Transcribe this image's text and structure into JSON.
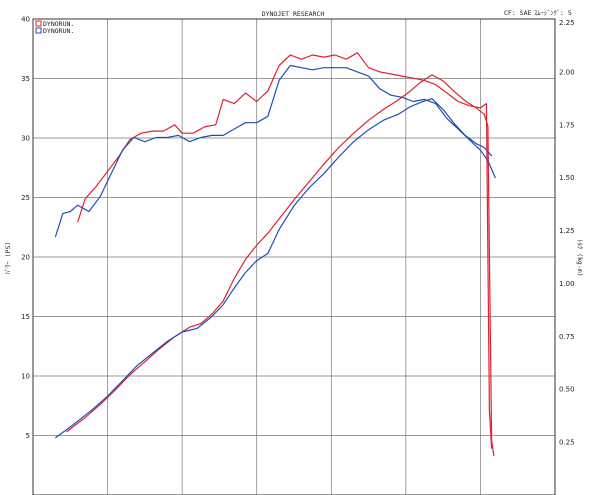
{
  "header": {
    "title": "DYNOJET RESEARCH",
    "correction": "CF: SAE",
    "smoothing": "ｽﾑｰｼﾞﾝｸﾞ: 5"
  },
  "chart_data": {
    "type": "line",
    "title": "DYNOJET RESEARCH",
    "ylabel": "ﾊﾟﾜｰ (PS)",
    "y2label": "ﾄﾙｸ (kg-m)",
    "xlabel": "",
    "ylim": [
      0,
      40
    ],
    "y2lim": [
      0,
      2.25
    ],
    "yticks": [
      "5",
      "10",
      "15",
      "20",
      "25",
      "30",
      "35",
      "40"
    ],
    "y2ticks": [
      "0.25",
      "0.50",
      "0.75",
      "1.00",
      "1.25",
      "1.50",
      "1.75",
      "2.00",
      "2.25"
    ],
    "x_grid_divisions": 7,
    "grid": true,
    "legend_position": "top-left",
    "colors": {
      "red": "#e0212f",
      "blue": "#1f4fb4"
    },
    "legend": [
      {
        "label": "DYNORUN.",
        "color": "#e0212f"
      },
      {
        "label": "DYNORUN.",
        "color": "#1f4fb4"
      }
    ],
    "series": [
      {
        "name": "DYNORUN.",
        "color": "#e0212f",
        "measure": "power",
        "axis": "left",
        "points": [
          [
            0.45,
            5.3
          ],
          [
            0.55,
            5.8
          ],
          [
            0.7,
            6.5
          ],
          [
            0.9,
            7.6
          ],
          [
            1.1,
            8.8
          ],
          [
            1.3,
            10.1
          ],
          [
            1.5,
            11.2
          ],
          [
            1.7,
            12.3
          ],
          [
            1.9,
            13.3
          ],
          [
            2.1,
            14.1
          ],
          [
            2.25,
            14.4
          ],
          [
            2.4,
            15.2
          ],
          [
            2.55,
            16.3
          ],
          [
            2.7,
            18.2
          ],
          [
            2.85,
            19.8
          ],
          [
            3.0,
            21.0
          ],
          [
            3.15,
            22.0
          ],
          [
            3.3,
            23.2
          ],
          [
            3.5,
            24.8
          ],
          [
            3.7,
            26.3
          ],
          [
            3.9,
            27.8
          ],
          [
            4.1,
            29.2
          ],
          [
            4.3,
            30.4
          ],
          [
            4.5,
            31.5
          ],
          [
            4.7,
            32.4
          ],
          [
            4.9,
            33.2
          ],
          [
            5.05,
            33.9
          ],
          [
            5.2,
            34.7
          ],
          [
            5.35,
            35.3
          ],
          [
            5.5,
            34.8
          ],
          [
            5.65,
            33.9
          ],
          [
            5.8,
            33.1
          ],
          [
            5.95,
            32.5
          ],
          [
            6.05,
            32.0
          ],
          [
            6.1,
            31.0
          ],
          [
            6.15,
            4.6
          ],
          [
            6.18,
            3.3
          ]
        ]
      },
      {
        "name": "DYNORUN.",
        "color": "#1f4fb4",
        "measure": "power",
        "axis": "left",
        "points": [
          [
            0.3,
            4.8
          ],
          [
            0.45,
            5.5
          ],
          [
            0.6,
            6.2
          ],
          [
            0.8,
            7.2
          ],
          [
            1.0,
            8.3
          ],
          [
            1.2,
            9.6
          ],
          [
            1.4,
            10.9
          ],
          [
            1.6,
            11.9
          ],
          [
            1.8,
            12.9
          ],
          [
            2.0,
            13.7
          ],
          [
            2.2,
            14.0
          ],
          [
            2.4,
            15.0
          ],
          [
            2.55,
            16.0
          ],
          [
            2.7,
            17.4
          ],
          [
            2.85,
            18.7
          ],
          [
            3.0,
            19.7
          ],
          [
            3.15,
            20.3
          ],
          [
            3.3,
            22.3
          ],
          [
            3.5,
            24.3
          ],
          [
            3.7,
            25.8
          ],
          [
            3.9,
            27.0
          ],
          [
            4.1,
            28.4
          ],
          [
            4.3,
            29.7
          ],
          [
            4.5,
            30.7
          ],
          [
            4.7,
            31.5
          ],
          [
            4.9,
            32.0
          ],
          [
            5.05,
            32.6
          ],
          [
            5.2,
            33.0
          ],
          [
            5.35,
            33.3
          ],
          [
            5.5,
            32.4
          ],
          [
            5.65,
            31.2
          ],
          [
            5.8,
            30.2
          ],
          [
            5.95,
            29.5
          ],
          [
            6.05,
            29.2
          ],
          [
            6.15,
            28.5
          ]
        ]
      },
      {
        "name": "DYNORUN.",
        "color": "#e0212f",
        "measure": "torque",
        "axis": "right",
        "points": [
          [
            0.6,
            1.29
          ],
          [
            0.7,
            1.4
          ],
          [
            0.85,
            1.46
          ],
          [
            1.0,
            1.53
          ],
          [
            1.15,
            1.6
          ],
          [
            1.3,
            1.68
          ],
          [
            1.45,
            1.71
          ],
          [
            1.6,
            1.72
          ],
          [
            1.75,
            1.72
          ],
          [
            1.9,
            1.75
          ],
          [
            2.0,
            1.71
          ],
          [
            2.15,
            1.71
          ],
          [
            2.3,
            1.74
          ],
          [
            2.45,
            1.75
          ],
          [
            2.55,
            1.87
          ],
          [
            2.7,
            1.85
          ],
          [
            2.85,
            1.9
          ],
          [
            3.0,
            1.86
          ],
          [
            3.15,
            1.91
          ],
          [
            3.3,
            2.03
          ],
          [
            3.45,
            2.08
          ],
          [
            3.6,
            2.06
          ],
          [
            3.75,
            2.08
          ],
          [
            3.9,
            2.07
          ],
          [
            4.05,
            2.08
          ],
          [
            4.2,
            2.06
          ],
          [
            4.35,
            2.09
          ],
          [
            4.5,
            2.02
          ],
          [
            4.65,
            2.0
          ],
          [
            4.8,
            1.99
          ],
          [
            4.95,
            1.98
          ],
          [
            5.1,
            1.97
          ],
          [
            5.25,
            1.96
          ],
          [
            5.4,
            1.94
          ],
          [
            5.55,
            1.9
          ],
          [
            5.7,
            1.86
          ],
          [
            5.85,
            1.84
          ],
          [
            6.0,
            1.83
          ],
          [
            6.08,
            1.85
          ],
          [
            6.12,
            0.4
          ],
          [
            6.15,
            0.22
          ]
        ]
      },
      {
        "name": "DYNORUN.",
        "color": "#1f4fb4",
        "measure": "torque",
        "axis": "right",
        "points": [
          [
            0.3,
            1.22
          ],
          [
            0.4,
            1.33
          ],
          [
            0.5,
            1.34
          ],
          [
            0.6,
            1.37
          ],
          [
            0.75,
            1.34
          ],
          [
            0.9,
            1.41
          ],
          [
            1.05,
            1.52
          ],
          [
            1.2,
            1.63
          ],
          [
            1.35,
            1.69
          ],
          [
            1.5,
            1.67
          ],
          [
            1.65,
            1.69
          ],
          [
            1.8,
            1.69
          ],
          [
            1.95,
            1.7
          ],
          [
            2.1,
            1.67
          ],
          [
            2.25,
            1.69
          ],
          [
            2.4,
            1.7
          ],
          [
            2.55,
            1.7
          ],
          [
            2.7,
            1.73
          ],
          [
            2.85,
            1.76
          ],
          [
            3.0,
            1.76
          ],
          [
            3.15,
            1.79
          ],
          [
            3.3,
            1.96
          ],
          [
            3.45,
            2.03
          ],
          [
            3.6,
            2.02
          ],
          [
            3.75,
            2.01
          ],
          [
            3.9,
            2.02
          ],
          [
            4.05,
            2.02
          ],
          [
            4.2,
            2.02
          ],
          [
            4.35,
            2.0
          ],
          [
            4.5,
            1.98
          ],
          [
            4.65,
            1.92
          ],
          [
            4.8,
            1.89
          ],
          [
            4.95,
            1.88
          ],
          [
            5.1,
            1.86
          ],
          [
            5.25,
            1.87
          ],
          [
            5.4,
            1.85
          ],
          [
            5.55,
            1.78
          ],
          [
            5.7,
            1.73
          ],
          [
            5.85,
            1.68
          ],
          [
            6.0,
            1.63
          ],
          [
            6.1,
            1.58
          ],
          [
            6.2,
            1.5
          ]
        ]
      }
    ]
  }
}
